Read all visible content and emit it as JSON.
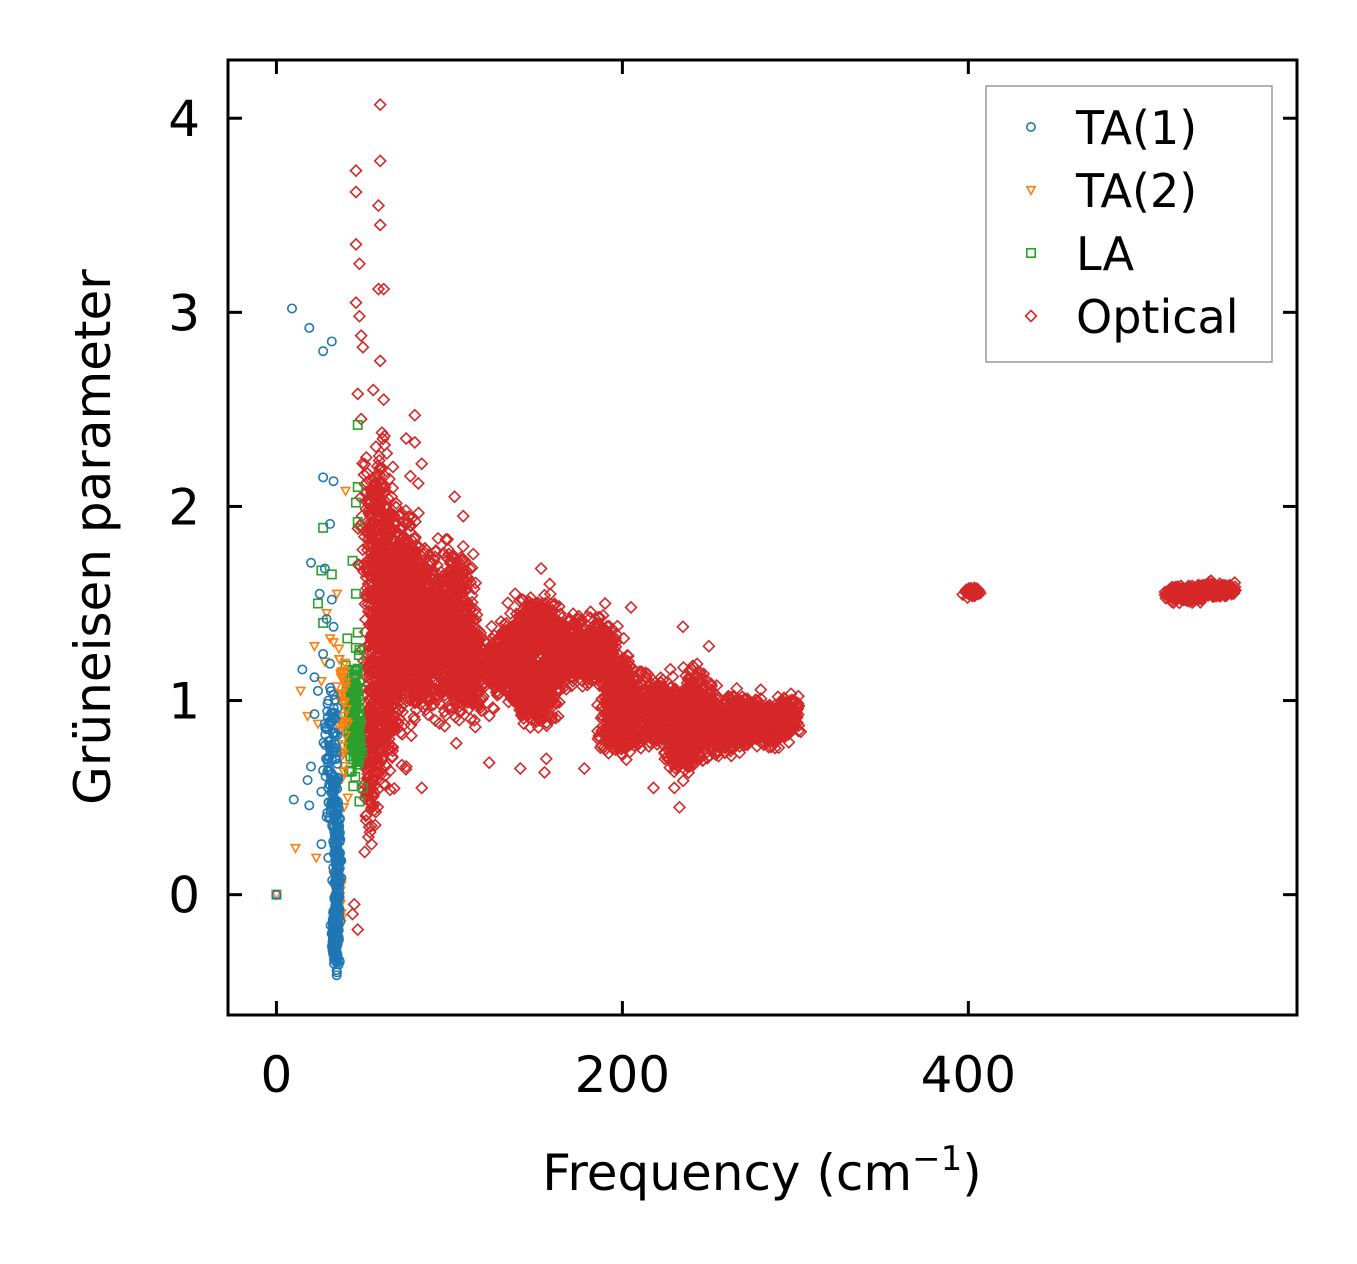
{
  "chart_data": {
    "type": "scatter",
    "title": "",
    "xlabel": "Frequency (cm",
    "xlabel_sup": "−1",
    "xlabel_close": ")",
    "ylabel": "Grüneisen parameter",
    "xlim": [
      -28,
      590
    ],
    "ylim": [
      -0.62,
      4.3
    ],
    "xticks": [
      0,
      200,
      400
    ],
    "yticks": [
      0,
      1,
      2,
      3,
      4
    ],
    "xtick_labels": [
      "0",
      "200",
      "400"
    ],
    "ytick_labels": [
      "0",
      "1",
      "2",
      "3",
      "4"
    ],
    "legend_position": "top-right",
    "series": [
      {
        "name": "TA(1)",
        "marker": "circle",
        "color": "#1f77b4",
        "points": [
          [
            0,
            0
          ],
          [
            9,
            3.02
          ],
          [
            19,
            2.92
          ],
          [
            27,
            2.8
          ],
          [
            32,
            2.85
          ],
          [
            27,
            2.15
          ],
          [
            33,
            2.13
          ],
          [
            31,
            1.91
          ],
          [
            20,
            1.71
          ],
          [
            28,
            1.68
          ],
          [
            25,
            1.55
          ],
          [
            32,
            1.52
          ],
          [
            29,
            1.42
          ],
          [
            33,
            1.38
          ],
          [
            15,
            1.16
          ],
          [
            22,
            1.12
          ],
          [
            27,
            1.24
          ],
          [
            31,
            1.19
          ],
          [
            24,
            1.05
          ],
          [
            30,
            1.0
          ],
          [
            33,
            1.03
          ],
          [
            22,
            0.93
          ],
          [
            28,
            0.88
          ],
          [
            30,
            0.79
          ],
          [
            20,
            0.66
          ],
          [
            27,
            0.64
          ],
          [
            18,
            0.59
          ],
          [
            26,
            0.53
          ],
          [
            10,
            0.49
          ],
          [
            19,
            0.46
          ],
          [
            29,
            0.4
          ],
          [
            26,
            0.26
          ],
          [
            30,
            0.19
          ],
          [
            34,
            0.12
          ],
          [
            35,
            0.05
          ],
          [
            36,
            -0.02
          ],
          [
            34,
            -0.08
          ],
          [
            35,
            -0.15
          ],
          [
            36,
            -0.22
          ],
          [
            35,
            -0.3
          ],
          [
            36,
            -0.36
          ],
          [
            35,
            -0.4
          ],
          [
            34,
            0.7
          ],
          [
            32,
            0.62
          ],
          [
            35,
            0.3
          ],
          [
            36,
            0.35
          ],
          [
            30,
            0.55
          ],
          [
            33,
            0.48
          ]
        ],
        "clusters": [
          [
            34,
            -0.2,
            2,
            0.15,
            160
          ],
          [
            35,
            0.2,
            2,
            0.3,
            140
          ],
          [
            32,
            0.8,
            4,
            0.25,
            60
          ],
          [
            33,
            0.5,
            3,
            0.15,
            50
          ]
        ]
      },
      {
        "name": "TA(2)",
        "marker": "triangle-down",
        "color": "#ff7f0e",
        "points": [
          [
            0,
            0
          ],
          [
            11,
            0.24
          ],
          [
            23,
            0.19
          ],
          [
            14,
            1.05
          ],
          [
            22,
            1.28
          ],
          [
            31,
            1.32
          ],
          [
            28,
            1.2
          ],
          [
            26,
            1.1
          ],
          [
            40,
            2.08
          ],
          [
            35,
            1.55
          ],
          [
            33,
            1.3
          ],
          [
            38,
            1.15
          ],
          [
            37,
            1.0
          ],
          [
            40,
            0.82
          ],
          [
            38,
            0.6
          ],
          [
            39,
            0.45
          ],
          [
            36,
            0.32
          ],
          [
            33,
            0.1
          ],
          [
            35,
            0.05
          ],
          [
            37,
            -0.05
          ],
          [
            38,
            -0.12
          ],
          [
            36,
            -0.2
          ],
          [
            18,
            0.92
          ],
          [
            24,
            0.88
          ],
          [
            29,
            1.45
          ]
        ],
        "clusters": [
          [
            38,
            0.9,
            3,
            0.35,
            40
          ],
          [
            36,
            0.0,
            2,
            0.15,
            30
          ]
        ]
      },
      {
        "name": "LA",
        "marker": "square",
        "color": "#2ca02c",
        "points": [
          [
            0,
            0
          ],
          [
            47,
            2.42
          ],
          [
            47,
            2.1
          ],
          [
            47,
            1.92
          ],
          [
            27,
            1.89
          ],
          [
            44,
            1.72
          ],
          [
            26,
            1.67
          ],
          [
            32,
            1.65
          ],
          [
            24,
            1.5
          ],
          [
            27,
            1.4
          ],
          [
            47,
            1.35
          ],
          [
            48,
            1.26
          ],
          [
            40,
            1.18
          ],
          [
            42,
            1.1
          ],
          [
            40,
            0.98
          ],
          [
            44,
            0.9
          ],
          [
            46,
            0.85
          ],
          [
            50,
            0.55
          ],
          [
            48,
            0.48
          ],
          [
            41,
            1.32
          ],
          [
            45,
            1.0
          ],
          [
            46,
            1.55
          ],
          [
            46,
            2.02
          ]
        ],
        "clusters": [
          [
            45,
            0.95,
            3,
            0.28,
            120
          ],
          [
            47,
            0.75,
            2,
            0.12,
            40
          ]
        ]
      },
      {
        "name": "Optical",
        "marker": "diamond",
        "color": "#d62728",
        "points": [
          [
            60,
            4.07
          ],
          [
            46,
            3.73
          ],
          [
            60,
            3.78
          ],
          [
            46,
            3.62
          ],
          [
            59,
            3.55
          ],
          [
            60,
            3.45
          ],
          [
            46,
            3.35
          ],
          [
            48,
            3.25
          ],
          [
            59,
            3.12
          ],
          [
            62,
            3.12
          ],
          [
            46,
            3.05
          ],
          [
            48,
            2.98
          ],
          [
            49,
            2.88
          ],
          [
            60,
            2.75
          ],
          [
            50,
            2.82
          ],
          [
            56,
            2.6
          ],
          [
            47,
            2.58
          ],
          [
            62,
            2.55
          ],
          [
            80,
            2.47
          ],
          [
            49,
            2.45
          ],
          [
            61,
            2.38
          ],
          [
            75,
            2.35
          ],
          [
            80,
            2.33
          ],
          [
            60,
            2.2
          ],
          [
            84,
            2.22
          ],
          [
            48,
            1.9
          ],
          [
            108,
            1.95
          ],
          [
            103,
            2.05
          ],
          [
            138,
            1.55
          ],
          [
            153,
            1.68
          ],
          [
            158,
            1.6
          ],
          [
            190,
            1.5
          ],
          [
            205,
            1.48
          ],
          [
            235,
            1.38
          ],
          [
            250,
            1.28
          ],
          [
            123,
            0.68
          ],
          [
            141,
            0.65
          ],
          [
            155,
            0.63
          ],
          [
            156,
            0.7
          ],
          [
            178,
            0.65
          ],
          [
            84,
            0.55
          ],
          [
            75,
            0.66
          ],
          [
            104,
            0.78
          ],
          [
            63,
            0.8
          ],
          [
            51,
            0.22
          ],
          [
            55,
            0.26
          ],
          [
            47,
            -0.18
          ],
          [
            44,
            -0.1
          ],
          [
            45,
            -0.05
          ],
          [
            233,
            0.45
          ],
          [
            230,
            0.55
          ],
          [
            218,
            0.55
          ],
          [
            200,
            0.72
          ]
        ],
        "clusters": [
          [
            80,
            1.35,
            22,
            0.35,
            1400
          ],
          [
            70,
            1.6,
            12,
            0.4,
            500
          ],
          [
            62,
            1.1,
            9,
            0.45,
            350
          ],
          [
            58,
            1.9,
            8,
            0.4,
            200
          ],
          [
            55,
            0.7,
            5,
            0.35,
            150
          ],
          [
            105,
            1.45,
            10,
            0.3,
            300
          ],
          [
            110,
            1.15,
            12,
            0.2,
            350
          ],
          [
            135,
            1.2,
            12,
            0.15,
            450
          ],
          [
            150,
            1.35,
            12,
            0.15,
            400
          ],
          [
            150,
            1.05,
            12,
            0.15,
            350
          ],
          [
            168,
            1.25,
            10,
            0.15,
            300
          ],
          [
            185,
            1.25,
            12,
            0.15,
            350
          ],
          [
            200,
            1.05,
            12,
            0.15,
            300
          ],
          [
            198,
            0.85,
            10,
            0.12,
            200
          ],
          [
            220,
            0.95,
            12,
            0.15,
            300
          ],
          [
            235,
            0.8,
            10,
            0.15,
            250
          ],
          [
            242,
            1.0,
            10,
            0.15,
            250
          ],
          [
            255,
            0.85,
            12,
            0.12,
            300
          ],
          [
            270,
            0.9,
            10,
            0.12,
            300
          ],
          [
            285,
            0.88,
            8,
            0.1,
            250
          ],
          [
            296,
            0.92,
            5,
            0.08,
            150
          ],
          [
            402,
            1.56,
            4,
            0.02,
            60
          ],
          [
            530,
            1.56,
            12,
            0.03,
            250
          ],
          [
            545,
            1.57,
            10,
            0.03,
            200
          ],
          [
            525,
            1.54,
            8,
            0.03,
            150
          ]
        ]
      }
    ]
  }
}
